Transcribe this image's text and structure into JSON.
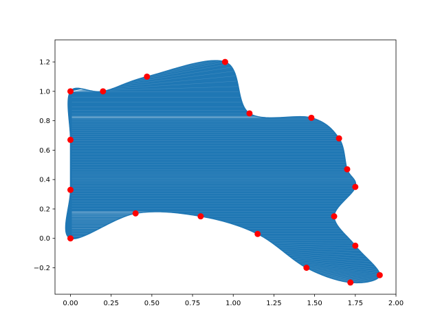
{
  "chart_data": {
    "type": "scatter",
    "title": "",
    "xlabel": "",
    "ylabel": "",
    "xlim": [
      -0.095,
      2.0
    ],
    "ylim": [
      -0.38,
      1.35
    ],
    "x_ticks": [
      0.0,
      0.25,
      0.5,
      0.75,
      1.0,
      1.25,
      1.5,
      1.75,
      2.0
    ],
    "x_tick_labels": [
      "0.00",
      "0.25",
      "0.50",
      "0.75",
      "1.00",
      "1.25",
      "1.50",
      "1.75",
      "2.00"
    ],
    "y_ticks": [
      -0.2,
      0.0,
      0.2,
      0.4,
      0.6,
      0.8,
      1.0,
      1.2
    ],
    "y_tick_labels": [
      "−0.2",
      "0.0",
      "0.2",
      "0.4",
      "0.6",
      "0.8",
      "1.0",
      "1.2"
    ],
    "grid": false,
    "mesh_color": "#1f77b4",
    "point_color": "#ff0000",
    "boundary_points": [
      {
        "x": 0.0,
        "y": 1.0
      },
      {
        "x": 0.2,
        "y": 1.0
      },
      {
        "x": 0.47,
        "y": 1.1
      },
      {
        "x": 0.95,
        "y": 1.2
      },
      {
        "x": 1.1,
        "y": 0.85
      },
      {
        "x": 1.48,
        "y": 0.82
      },
      {
        "x": 1.65,
        "y": 0.68
      },
      {
        "x": 1.7,
        "y": 0.47
      },
      {
        "x": 1.75,
        "y": 0.35
      },
      {
        "x": 1.62,
        "y": 0.15
      },
      {
        "x": 1.75,
        "y": -0.05
      },
      {
        "x": 1.9,
        "y": -0.25
      },
      {
        "x": 1.72,
        "y": -0.3
      },
      {
        "x": 1.45,
        "y": -0.2
      },
      {
        "x": 1.15,
        "y": 0.03
      },
      {
        "x": 0.8,
        "y": 0.15
      },
      {
        "x": 0.4,
        "y": 0.17
      },
      {
        "x": 0.0,
        "y": 0.0
      },
      {
        "x": 0.0,
        "y": 0.33
      },
      {
        "x": 0.0,
        "y": 0.67
      }
    ]
  }
}
